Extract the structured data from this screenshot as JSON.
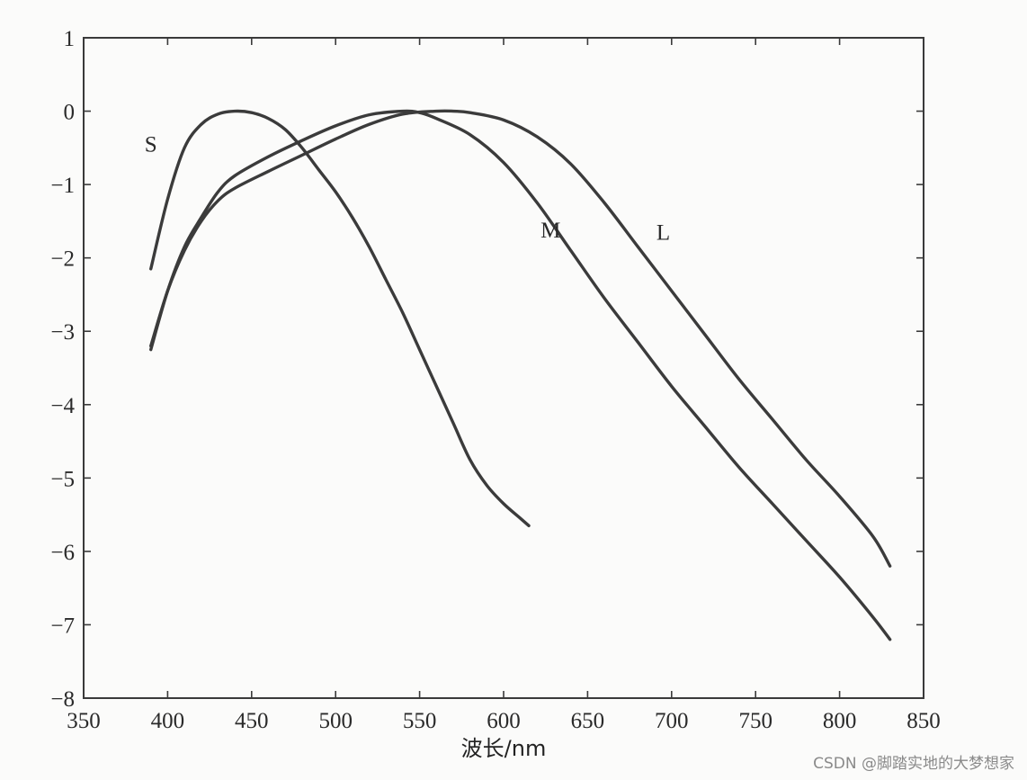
{
  "chart_data": {
    "type": "line",
    "title": "",
    "xlabel": "波长/nm",
    "ylabel": "",
    "xlim": [
      350,
      850
    ],
    "ylim": [
      -8,
      1
    ],
    "xticks": [
      350,
      400,
      450,
      500,
      550,
      600,
      650,
      700,
      750,
      800,
      850
    ],
    "yticks": [
      1,
      0,
      -1,
      -2,
      -3,
      -4,
      -5,
      -6,
      -7,
      -8
    ],
    "ytick_labels": [
      "1",
      "0",
      "−1",
      "−2",
      "−3",
      "−4",
      "−5",
      "−6",
      "−7",
      "−8"
    ],
    "grid": false,
    "legend": "none",
    "series": [
      {
        "name": "S",
        "x": [
          390,
          400,
          410,
          420,
          430,
          440,
          450,
          460,
          470,
          480,
          490,
          500,
          510,
          520,
          530,
          540,
          550,
          560,
          570,
          580,
          590,
          600,
          610,
          615
        ],
        "y": [
          -2.15,
          -1.2,
          -0.5,
          -0.18,
          -0.04,
          0.0,
          -0.02,
          -0.1,
          -0.25,
          -0.5,
          -0.8,
          -1.1,
          -1.45,
          -1.85,
          -2.3,
          -2.75,
          -3.25,
          -3.75,
          -4.25,
          -4.75,
          -5.1,
          -5.35,
          -5.55,
          -5.65
        ]
      },
      {
        "name": "M",
        "x": [
          390,
          400,
          410,
          420,
          430,
          440,
          460,
          480,
          500,
          520,
          540,
          550,
          560,
          580,
          600,
          620,
          640,
          660,
          680,
          700,
          720,
          740,
          760,
          780,
          800,
          820,
          830
        ],
        "y": [
          -3.25,
          -2.45,
          -1.85,
          -1.45,
          -1.1,
          -0.88,
          -0.62,
          -0.4,
          -0.2,
          -0.05,
          0.0,
          -0.02,
          -0.1,
          -0.32,
          -0.7,
          -1.25,
          -1.9,
          -2.55,
          -3.15,
          -3.75,
          -4.3,
          -4.85,
          -5.35,
          -5.85,
          -6.35,
          -6.9,
          -7.2
        ]
      },
      {
        "name": "L",
        "x": [
          390,
          400,
          410,
          420,
          430,
          440,
          460,
          480,
          500,
          520,
          540,
          560,
          570,
          580,
          600,
          620,
          640,
          660,
          680,
          700,
          720,
          740,
          760,
          780,
          800,
          820,
          830
        ],
        "y": [
          -3.2,
          -2.45,
          -1.9,
          -1.5,
          -1.22,
          -1.05,
          -0.82,
          -0.6,
          -0.38,
          -0.18,
          -0.04,
          0.0,
          0.0,
          -0.02,
          -0.12,
          -0.35,
          -0.72,
          -1.25,
          -1.85,
          -2.45,
          -3.05,
          -3.65,
          -4.2,
          -4.75,
          -5.25,
          -5.8,
          -6.2
        ]
      }
    ],
    "series_labels": [
      {
        "text": "S",
        "x": 390,
        "y": -0.55
      },
      {
        "text": "M",
        "x": 628,
        "y": -1.72
      },
      {
        "text": "L",
        "x": 695,
        "y": -1.75
      }
    ]
  },
  "watermark": "CSDN @脚踏实地的大梦想家"
}
